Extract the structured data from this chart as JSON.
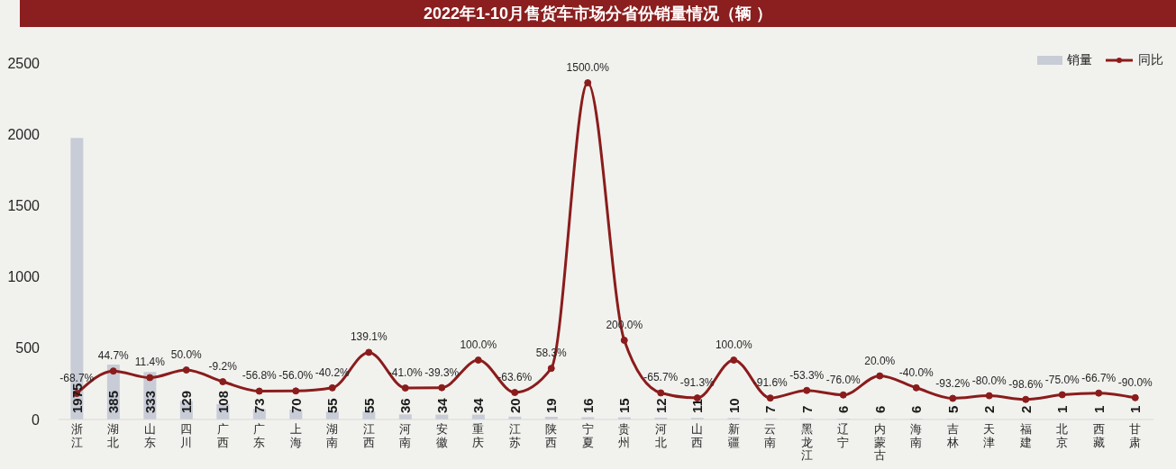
{
  "chart_data": {
    "type": "bar",
    "title": "2022年1-10月售货车市场分省份销量情况（辆 ）",
    "categories": [
      "浙江",
      "湖北",
      "山东",
      "四川",
      "广西",
      "广东",
      "上海",
      "湖南",
      "江西",
      "河南",
      "安徽",
      "重庆",
      "江苏",
      "陕西",
      "宁夏",
      "贵州",
      "河北",
      "山西",
      "新疆",
      "云南",
      "黑龙江",
      "辽宁",
      "内蒙古",
      "海南",
      "吉林",
      "天津",
      "福建",
      "北京",
      "西藏",
      "甘肃"
    ],
    "series": [
      {
        "name": "销量",
        "color": "#c8ccd6",
        "values": [
          1975,
          385,
          333,
          129,
          108,
          73,
          70,
          55,
          55,
          36,
          34,
          34,
          20,
          19,
          16,
          15,
          12,
          11,
          10,
          7,
          7,
          6,
          6,
          6,
          5,
          2,
          2,
          1,
          1,
          1
        ],
        "value_labels": [
          "1975",
          "385",
          "333",
          "129",
          "108",
          "73",
          "70",
          "55",
          "55",
          "36",
          "34",
          "34",
          "20",
          "19",
          "16",
          "15",
          "12",
          "11",
          "10",
          "7",
          "7",
          "6",
          "6",
          "6",
          "5",
          "2",
          "2",
          "1",
          "1",
          "1"
        ]
      },
      {
        "name": "同比",
        "type": "line",
        "axis": "y2",
        "color": "#8b1c1c",
        "values": [
          -68.7,
          44.7,
          11.4,
          50.0,
          -9.2,
          -56.8,
          -56.0,
          -40.2,
          139.1,
          -41.0,
          -39.3,
          100.0,
          -63.6,
          58.3,
          1500.0,
          200.0,
          -65.7,
          -91.3,
          100.0,
          -91.6,
          -53.3,
          -76.0,
          20.0,
          -40.0,
          -93.2,
          -80.0,
          -98.6,
          -75.0,
          -66.7,
          -90.0
        ],
        "value_labels": [
          "-68.7%",
          "44.7%",
          "11.4%",
          "50.0%",
          "-9.2%",
          "-56.8%",
          "-56.0%",
          "-40.2%",
          "139.1%",
          "-41.0%",
          "-39.3%",
          "100.0%",
          "-63.6%",
          "58.3%",
          "1500.0%",
          "200.0%",
          "-65.7%",
          "-91.3%",
          "100.0%",
          "-91.6%",
          "-53.3%",
          "-76.0%",
          "20.0%",
          "-40.0%",
          "-93.2%",
          "-80.0%",
          "-98.6%",
          "-75.0%",
          "-66.7%",
          "-90.0%"
        ]
      }
    ],
    "ylim": [
      0,
      2500
    ],
    "yticks": [
      0,
      500,
      1000,
      1500,
      2000,
      2500
    ],
    "tick_labels": "xy",
    "legend": "top right",
    "marker": "circle"
  }
}
